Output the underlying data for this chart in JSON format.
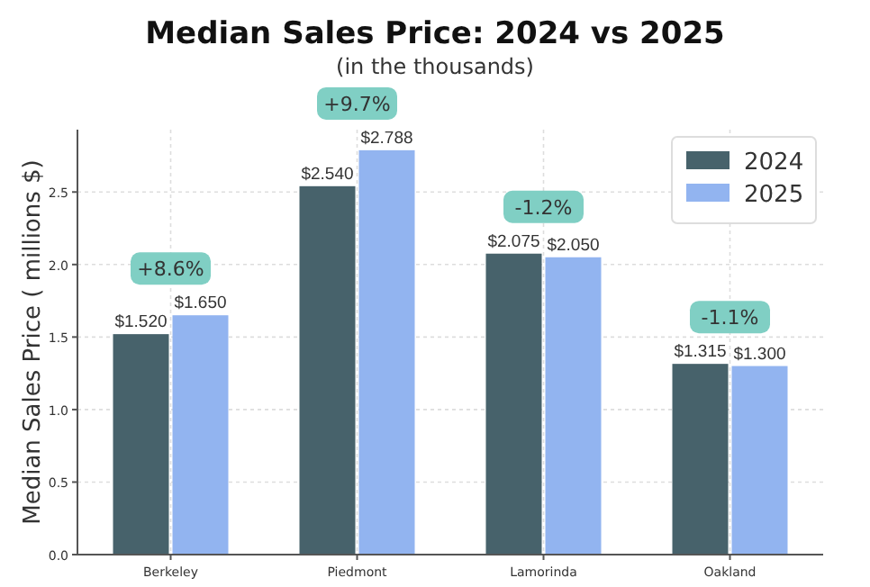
{
  "chart_data": {
    "type": "bar",
    "title": "Median Sales Price: 2024 vs 2025",
    "subtitle": "(in the thousands)",
    "ylabel": "Median Sales Price ( millions $)",
    "categories": [
      "Berkeley",
      "Piedmont",
      "Lamorinda",
      "Oakland"
    ],
    "series": [
      {
        "name": "2024",
        "color": "#47626b",
        "values": [
          1.52,
          2.54,
          2.075,
          1.315
        ],
        "value_labels": [
          "$1.520",
          "$2.540",
          "$2.075",
          "$1.315"
        ]
      },
      {
        "name": "2025",
        "color": "#92b4f0",
        "values": [
          1.65,
          2.788,
          2.05,
          1.3
        ],
        "value_labels": [
          "$1.650",
          "$2.788",
          "$2.050",
          "$1.300"
        ]
      }
    ],
    "annotations": [
      "+8.6%",
      "+9.7%",
      "-1.2%",
      "-1.1%"
    ],
    "ylim": [
      0,
      2.93
    ],
    "yticks": [
      {
        "value": 0,
        "label": "0.0"
      },
      {
        "value": 0.5,
        "label": "0.5"
      },
      {
        "value": 1,
        "label": "1.0"
      },
      {
        "value": 1.5,
        "label": "1.5"
      },
      {
        "value": 2,
        "label": "2.0"
      },
      {
        "value": 2.5,
        "label": "2.5"
      }
    ],
    "grid": true,
    "legend": "top right"
  }
}
